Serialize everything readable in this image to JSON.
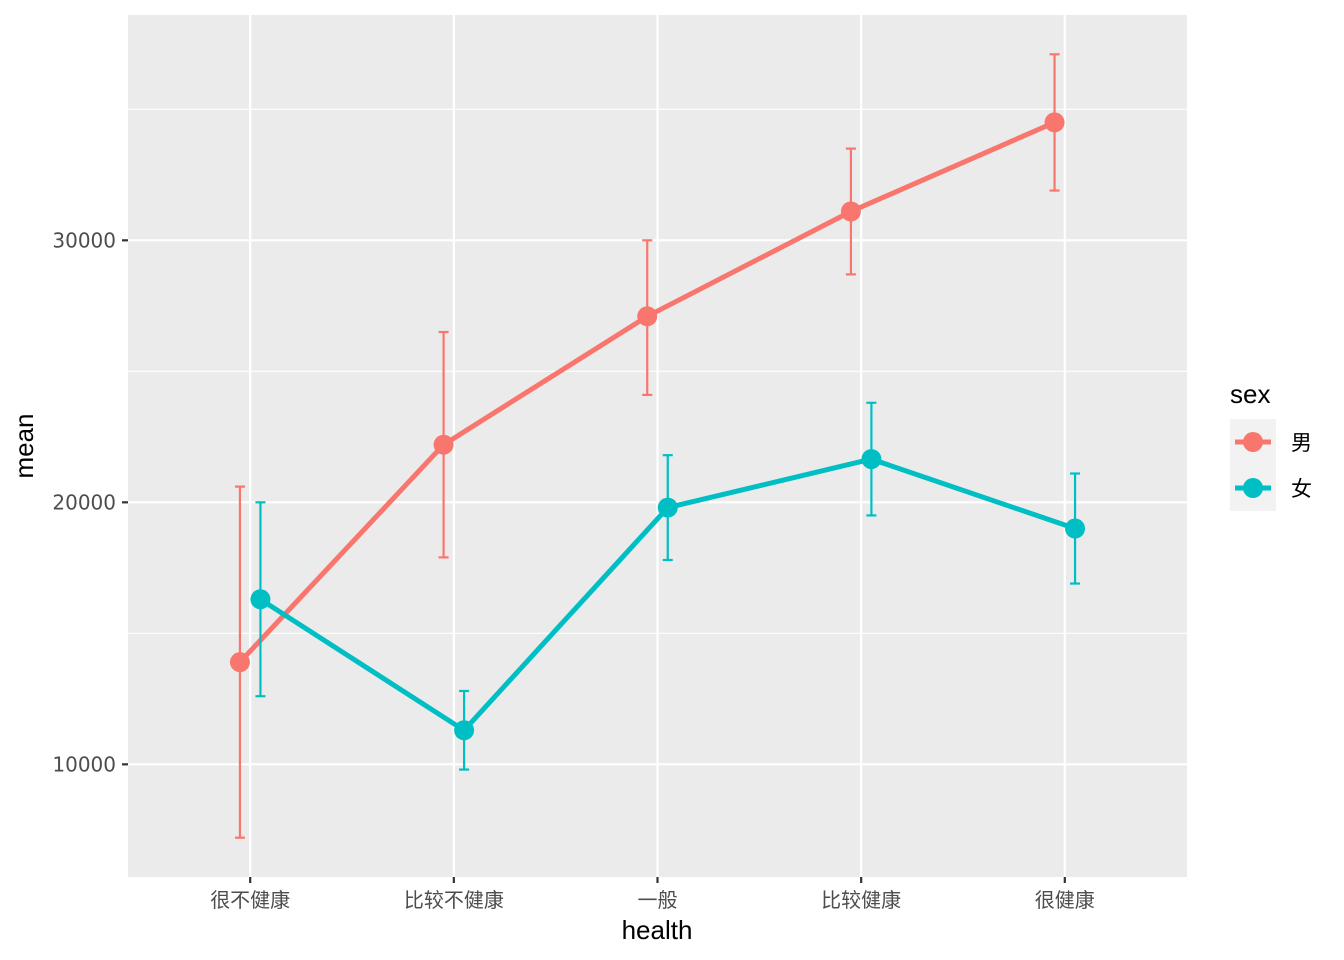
{
  "chart_data": {
    "type": "line",
    "xlabel": "health",
    "ylabel": "mean",
    "categories": [
      "很不健康",
      "比较不健康",
      "一般",
      "比较健康",
      "很健康"
    ],
    "ylim": [
      5700,
      38600
    ],
    "yticks": [
      10000,
      20000,
      30000
    ],
    "ytick_labels": [
      "10000",
      "20000",
      "30000"
    ],
    "grid": true,
    "error_bars": true,
    "legend": {
      "title": "sex",
      "position": "right"
    },
    "series": [
      {
        "name": "男",
        "color": "#F8766D",
        "values": [
          13900,
          22200,
          27100,
          31100,
          34500
        ],
        "lower": [
          7200,
          17900,
          24100,
          28700,
          31900
        ],
        "upper": [
          20600,
          26500,
          30000,
          33500,
          37100
        ]
      },
      {
        "name": "女",
        "color": "#00BFC4",
        "values": [
          16300,
          11300,
          19800,
          21650,
          19000
        ],
        "lower": [
          12600,
          9800,
          17800,
          19500,
          16900
        ],
        "upper": [
          20000,
          12800,
          21800,
          23800,
          21100
        ]
      }
    ]
  }
}
